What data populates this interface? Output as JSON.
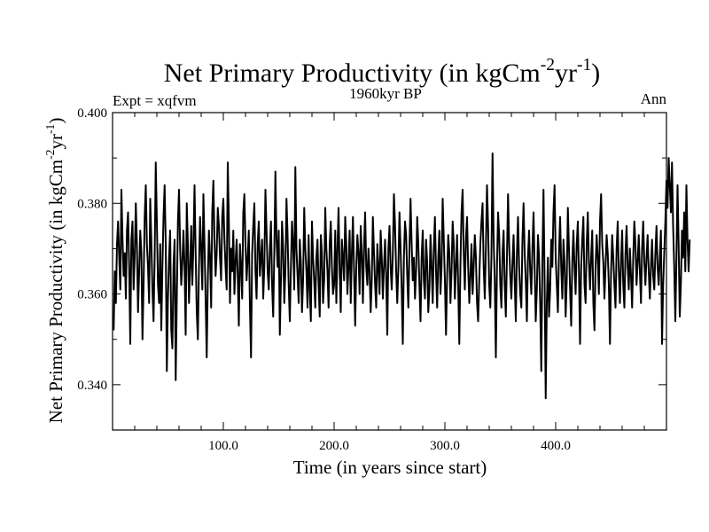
{
  "chart_data": {
    "type": "line",
    "title": "Net Primary Productivity (in kgCm",
    "title_sup1": "-2",
    "title_mid": "yr",
    "title_sup2": "-1",
    "title_end": ")",
    "subtitle_left": "Expt = xqfvm",
    "subtitle_center": "1960kyr BP",
    "subtitle_right": "Ann",
    "xlabel": "Time (in years since start)",
    "ylabel_prefix": "Net Primary Productivity (in kgCm",
    "ylabel_sup1": "-2",
    "ylabel_mid": "yr",
    "ylabel_sup2": "-1",
    "ylabel_end": ")",
    "xlim": [
      0,
      500
    ],
    "ylim": [
      0.33,
      0.4
    ],
    "x_ticks": [
      100,
      200,
      300,
      400
    ],
    "x_tick_labels": [
      "100.0",
      "200.0",
      "300.0",
      "400.0"
    ],
    "y_ticks": [
      0.34,
      0.36,
      0.38,
      0.4
    ],
    "y_tick_labels": [
      "0.340",
      "0.360",
      "0.380",
      "0.400"
    ],
    "line_color": "#000000",
    "series": [
      {
        "x_start": 1,
        "x_step": 1,
        "values": [
          0.352,
          0.365,
          0.358,
          0.371,
          0.376,
          0.368,
          0.361,
          0.383,
          0.372,
          0.364,
          0.369,
          0.359,
          0.374,
          0.378,
          0.366,
          0.349,
          0.372,
          0.376,
          0.361,
          0.368,
          0.38,
          0.371,
          0.356,
          0.365,
          0.374,
          0.369,
          0.35,
          0.362,
          0.377,
          0.384,
          0.371,
          0.366,
          0.358,
          0.381,
          0.372,
          0.361,
          0.354,
          0.368,
          0.389,
          0.376,
          0.362,
          0.358,
          0.371,
          0.352,
          0.366,
          0.377,
          0.384,
          0.371,
          0.343,
          0.359,
          0.368,
          0.374,
          0.352,
          0.348,
          0.366,
          0.372,
          0.341,
          0.359,
          0.376,
          0.383,
          0.37,
          0.362,
          0.367,
          0.374,
          0.366,
          0.351,
          0.38,
          0.371,
          0.358,
          0.366,
          0.375,
          0.362,
          0.371,
          0.384,
          0.369,
          0.356,
          0.35,
          0.366,
          0.377,
          0.37,
          0.361,
          0.382,
          0.371,
          0.359,
          0.346,
          0.363,
          0.374,
          0.368,
          0.357,
          0.378,
          0.385,
          0.372,
          0.364,
          0.369,
          0.379,
          0.375,
          0.368,
          0.363,
          0.377,
          0.381,
          0.372,
          0.366,
          0.361,
          0.389,
          0.376,
          0.358,
          0.37,
          0.365,
          0.374,
          0.36,
          0.367,
          0.372,
          0.364,
          0.353,
          0.371,
          0.366,
          0.359,
          0.378,
          0.382,
          0.371,
          0.363,
          0.368,
          0.374,
          0.357,
          0.346,
          0.369,
          0.375,
          0.38,
          0.365,
          0.359,
          0.371,
          0.376,
          0.364,
          0.368,
          0.372,
          0.359,
          0.366,
          0.383,
          0.374,
          0.365,
          0.361,
          0.37,
          0.376,
          0.362,
          0.355,
          0.369,
          0.387,
          0.372,
          0.366,
          0.374,
          0.351,
          0.363,
          0.376,
          0.37,
          0.358,
          0.365,
          0.381,
          0.373,
          0.362,
          0.354,
          0.366,
          0.376,
          0.371,
          0.361,
          0.388,
          0.37,
          0.364,
          0.358,
          0.372,
          0.367,
          0.356,
          0.363,
          0.379,
          0.37,
          0.365,
          0.357,
          0.373,
          0.361,
          0.354,
          0.376,
          0.368,
          0.363,
          0.357,
          0.368,
          0.372,
          0.362,
          0.355,
          0.373,
          0.369,
          0.358,
          0.363,
          0.379,
          0.37,
          0.365,
          0.357,
          0.371,
          0.376,
          0.366,
          0.36,
          0.362,
          0.374,
          0.358,
          0.37,
          0.379,
          0.365,
          0.356,
          0.372,
          0.368,
          0.363,
          0.377,
          0.371,
          0.36,
          0.366,
          0.374,
          0.358,
          0.369,
          0.377,
          0.365,
          0.353,
          0.366,
          0.373,
          0.369,
          0.36,
          0.375,
          0.369,
          0.358,
          0.37,
          0.378,
          0.366,
          0.362,
          0.37,
          0.365,
          0.356,
          0.363,
          0.377,
          0.369,
          0.362,
          0.357,
          0.371,
          0.366,
          0.36,
          0.374,
          0.368,
          0.359,
          0.366,
          0.372,
          0.364,
          0.351,
          0.37,
          0.375,
          0.366,
          0.361,
          0.369,
          0.382,
          0.375,
          0.365,
          0.358,
          0.366,
          0.378,
          0.37,
          0.361,
          0.349,
          0.368,
          0.376,
          0.373,
          0.364,
          0.357,
          0.37,
          0.381,
          0.371,
          0.363,
          0.368,
          0.359,
          0.365,
          0.377,
          0.371,
          0.362,
          0.354,
          0.368,
          0.374,
          0.363,
          0.359,
          0.372,
          0.367,
          0.356,
          0.361,
          0.373,
          0.366,
          0.358,
          0.37,
          0.377,
          0.365,
          0.357,
          0.368,
          0.374,
          0.36,
          0.366,
          0.381,
          0.372,
          0.363,
          0.351,
          0.364,
          0.373,
          0.369,
          0.358,
          0.365,
          0.376,
          0.371,
          0.359,
          0.366,
          0.373,
          0.362,
          0.349,
          0.366,
          0.378,
          0.383,
          0.369,
          0.361,
          0.372,
          0.377,
          0.366,
          0.358,
          0.364,
          0.371,
          0.36,
          0.366,
          0.373,
          0.368,
          0.358,
          0.354,
          0.363,
          0.371,
          0.376,
          0.38,
          0.366,
          0.359,
          0.37,
          0.384,
          0.375,
          0.362,
          0.357,
          0.368,
          0.391,
          0.372,
          0.363,
          0.346,
          0.366,
          0.378,
          0.373,
          0.362,
          0.357,
          0.369,
          0.374,
          0.362,
          0.355,
          0.368,
          0.382,
          0.371,
          0.364,
          0.359,
          0.367,
          0.373,
          0.363,
          0.354,
          0.369,
          0.377,
          0.366,
          0.36,
          0.357,
          0.372,
          0.38,
          0.369,
          0.363,
          0.354,
          0.368,
          0.374,
          0.365,
          0.36,
          0.37,
          0.378,
          0.366,
          0.354,
          0.361,
          0.373,
          0.368,
          0.358,
          0.343,
          0.367,
          0.383,
          0.363,
          0.337,
          0.358,
          0.368,
          0.355,
          0.361,
          0.372,
          0.366,
          0.378,
          0.384,
          0.368,
          0.362,
          0.356,
          0.369,
          0.377,
          0.366,
          0.359,
          0.372,
          0.367,
          0.355,
          0.363,
          0.379,
          0.37,
          0.361,
          0.353,
          0.367,
          0.374,
          0.366,
          0.36,
          0.371,
          0.376,
          0.365,
          0.349,
          0.366,
          0.372,
          0.377,
          0.362,
          0.358,
          0.371,
          0.378,
          0.367,
          0.361,
          0.368,
          0.374,
          0.358,
          0.352,
          0.366,
          0.373,
          0.368,
          0.36,
          0.376,
          0.382,
          0.371,
          0.367,
          0.359,
          0.366,
          0.373,
          0.369,
          0.362,
          0.349,
          0.365,
          0.373,
          0.368,
          0.362,
          0.357,
          0.37,
          0.376,
          0.365,
          0.358,
          0.367,
          0.374,
          0.362,
          0.357,
          0.369,
          0.375,
          0.366,
          0.361,
          0.37,
          0.364,
          0.357,
          0.368,
          0.376,
          0.371,
          0.362,
          0.367,
          0.373,
          0.365,
          0.358,
          0.37,
          0.376,
          0.367,
          0.362,
          0.368,
          0.373,
          0.365,
          0.359,
          0.366,
          0.372,
          0.364,
          0.361,
          0.369,
          0.375,
          0.366,
          0.362,
          0.368,
          0.374,
          0.349,
          0.362,
          0.369,
          0.376,
          0.385,
          0.379,
          0.39,
          0.384,
          0.378,
          0.389,
          0.375,
          0.366,
          0.354,
          0.368,
          0.384,
          0.371,
          0.355,
          0.362,
          0.374,
          0.368,
          0.378,
          0.365,
          0.384,
          0.372,
          0.365,
          0.372
        ]
      }
    ]
  }
}
